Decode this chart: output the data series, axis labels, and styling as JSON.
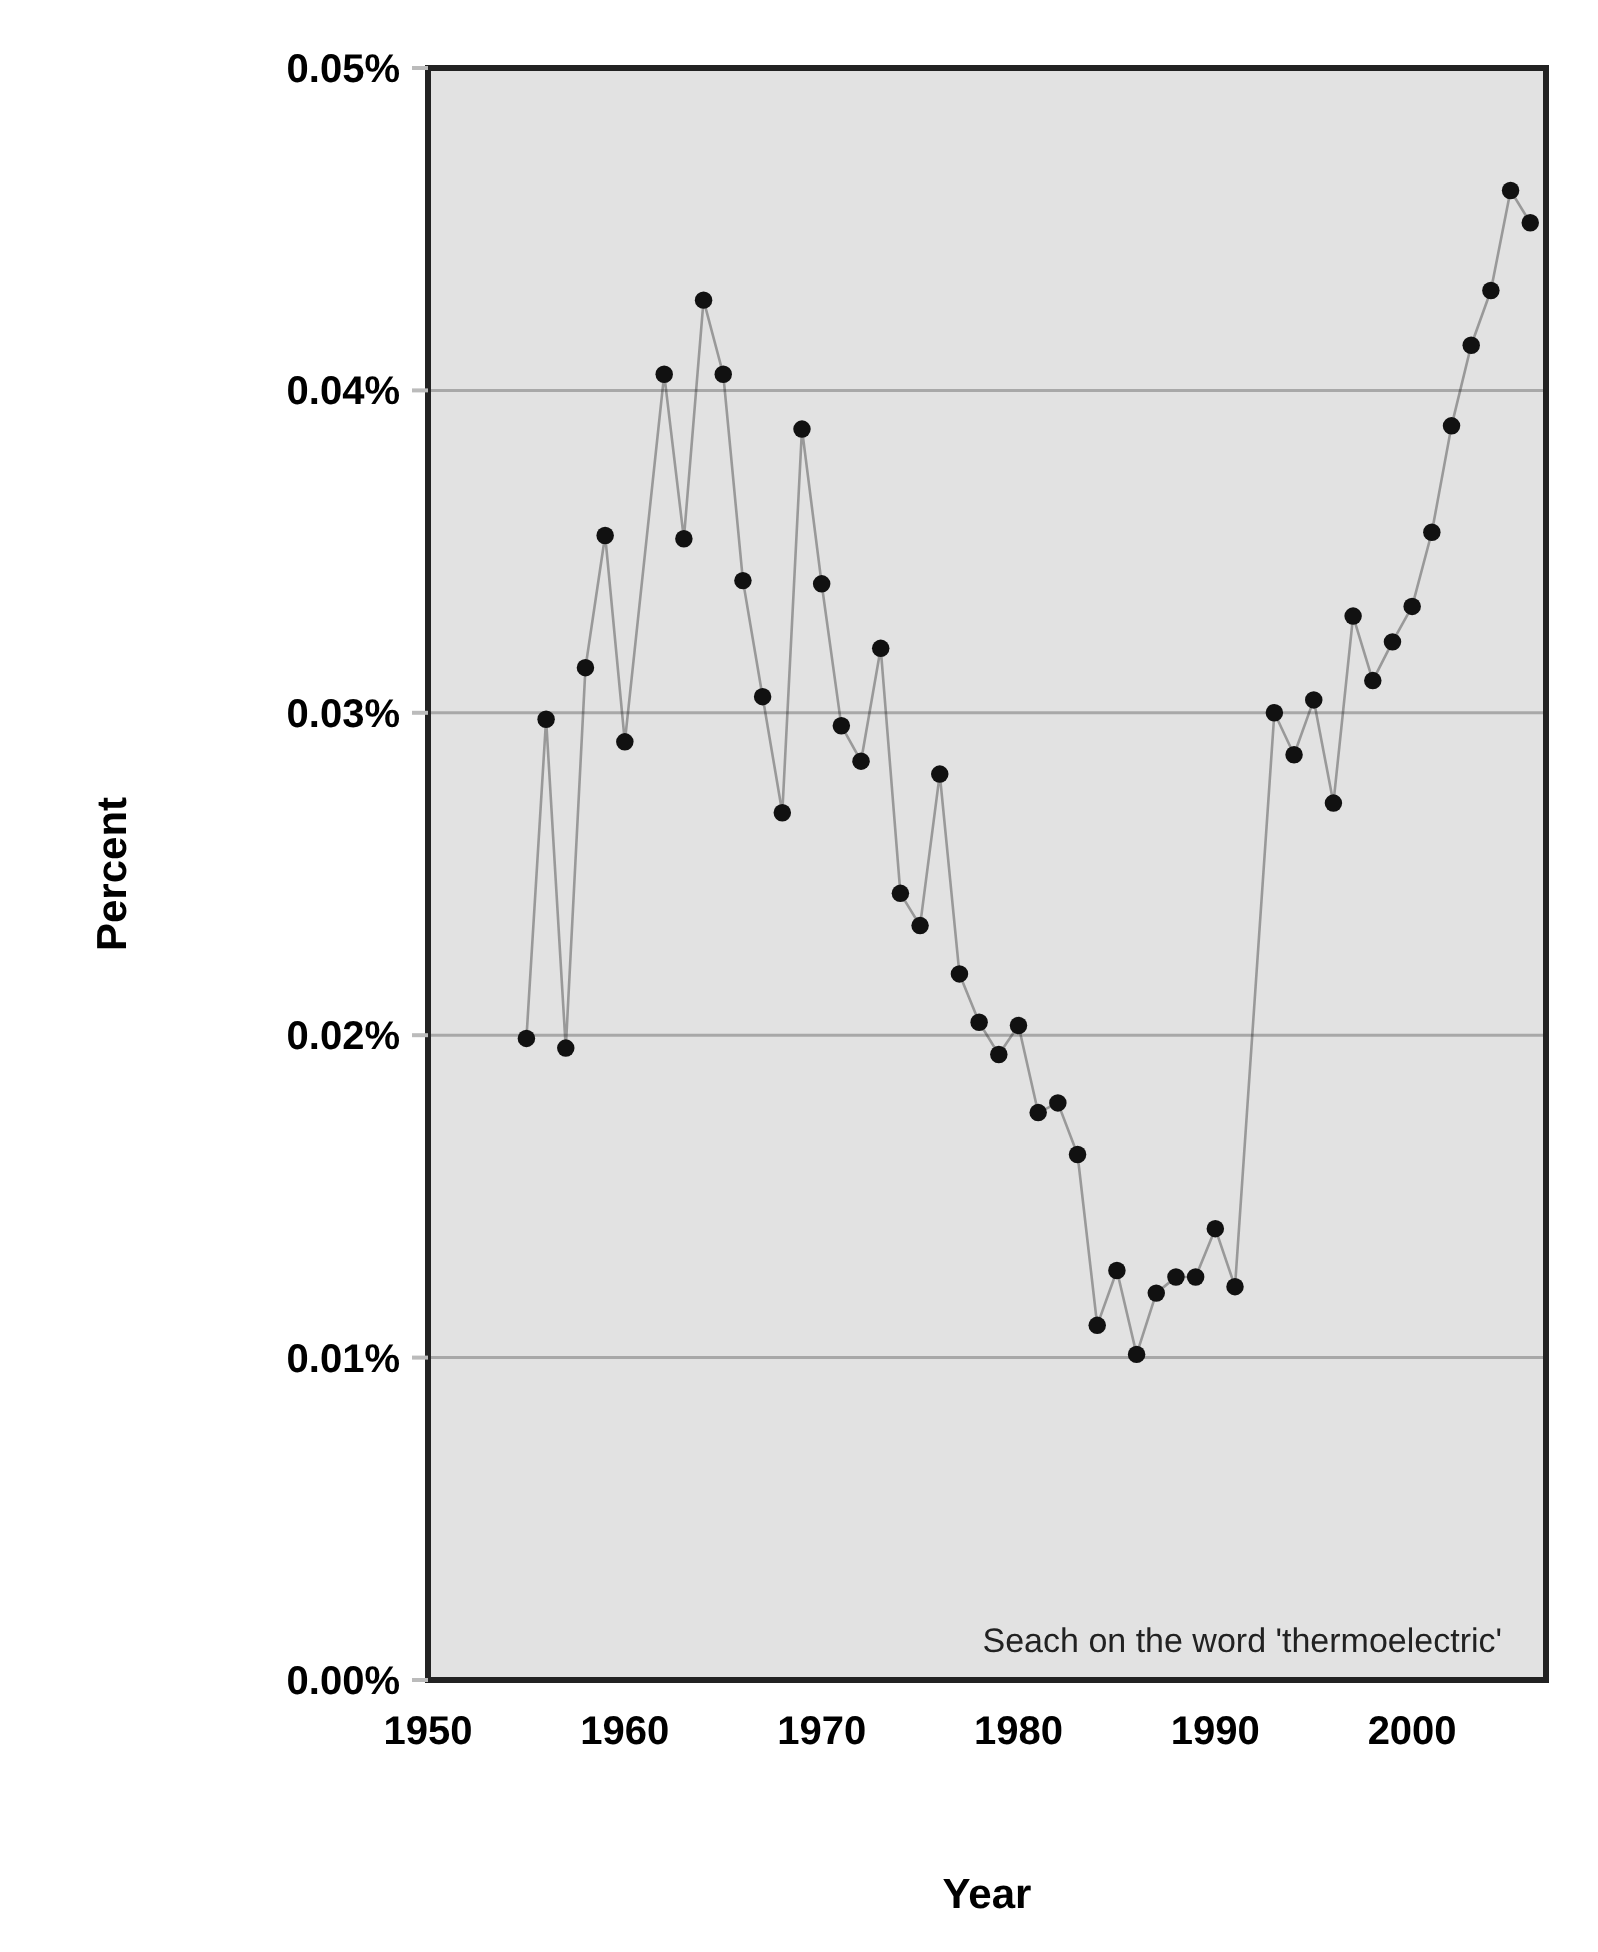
{
  "chart_data": {
    "type": "line",
    "xlabel": "Year",
    "ylabel": "Percent",
    "x": [
      1955,
      1956,
      1957,
      1958,
      1959,
      1960,
      1962,
      1963,
      1964,
      1965,
      1966,
      1967,
      1968,
      1969,
      1970,
      1971,
      1972,
      1973,
      1974,
      1975,
      1976,
      1977,
      1978,
      1979,
      1980,
      1981,
      1982,
      1983,
      1984,
      1985,
      1986,
      1987,
      1988,
      1989,
      1990,
      1991,
      1993,
      1994,
      1995,
      1996,
      1997,
      1998,
      1999,
      2000,
      2001,
      2002,
      2003,
      2004,
      2005,
      2006
    ],
    "series": [
      {
        "color": "#111111",
        "values": [
          0.0199,
          0.0298,
          0.0196,
          0.0314,
          0.0355,
          0.0291,
          0.0405,
          0.0354,
          0.0428,
          0.0405,
          0.0341,
          0.0305,
          0.0269,
          0.0388,
          0.034,
          0.0296,
          0.0285,
          0.032,
          0.0244,
          0.0234,
          0.0281,
          0.0219,
          0.0204,
          0.0194,
          0.0203,
          0.0176,
          0.0179,
          0.0163,
          0.011,
          0.0127,
          0.0101,
          0.012,
          0.0125,
          0.0125,
          0.014,
          0.0122,
          0.03,
          0.0287,
          0.0304,
          0.0272,
          0.033,
          0.031,
          0.0322,
          0.0333,
          0.0356,
          0.0389,
          0.0414,
          0.0431,
          0.0462,
          0.0452
        ]
      }
    ],
    "xlim": [
      1950,
      2006.8
    ],
    "ylim": [
      0,
      0.05
    ],
    "xticks": [
      1950,
      1960,
      1970,
      1980,
      1990,
      2000
    ],
    "yticks": [
      {
        "value": 0,
        "label": "0.00%"
      },
      {
        "value": 0.01,
        "label": "0.01%"
      },
      {
        "value": 0.02,
        "label": "0.02%"
      },
      {
        "value": 0.03,
        "label": "0.03%"
      },
      {
        "value": 0.04,
        "label": "0.04%"
      },
      {
        "value": 0.05,
        "label": "0.05%"
      }
    ],
    "grid": "y",
    "marker": "circle",
    "line_style": "solid",
    "annotations": [
      "Seach on the word 'thermoelectric'"
    ]
  }
}
